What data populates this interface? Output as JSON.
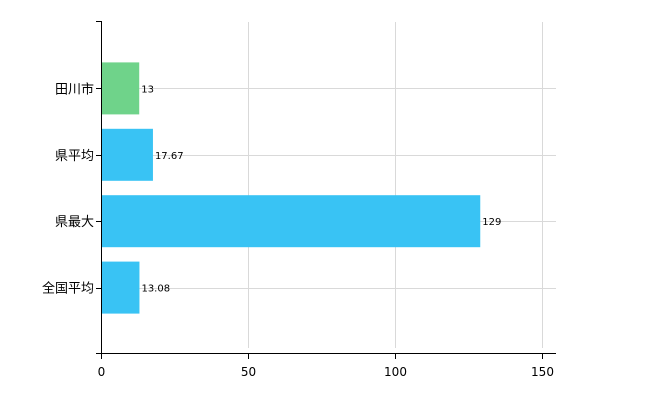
{
  "chart_data": {
    "type": "bar",
    "orientation": "horizontal",
    "categories": [
      "田川市",
      "県平均",
      "県最大",
      "全国平均"
    ],
    "values": [
      13,
      17.67,
      129,
      13.08
    ],
    "data_labels": [
      "13",
      "17.67",
      "129",
      "13.08"
    ],
    "bar_colors": [
      "#6fd38a",
      "#39c3f4",
      "#39c3f4",
      "#39c3f4"
    ],
    "xlim": [
      0,
      150
    ],
    "xticks": [
      0,
      50,
      100,
      150
    ],
    "grid": true,
    "legend": "none"
  }
}
